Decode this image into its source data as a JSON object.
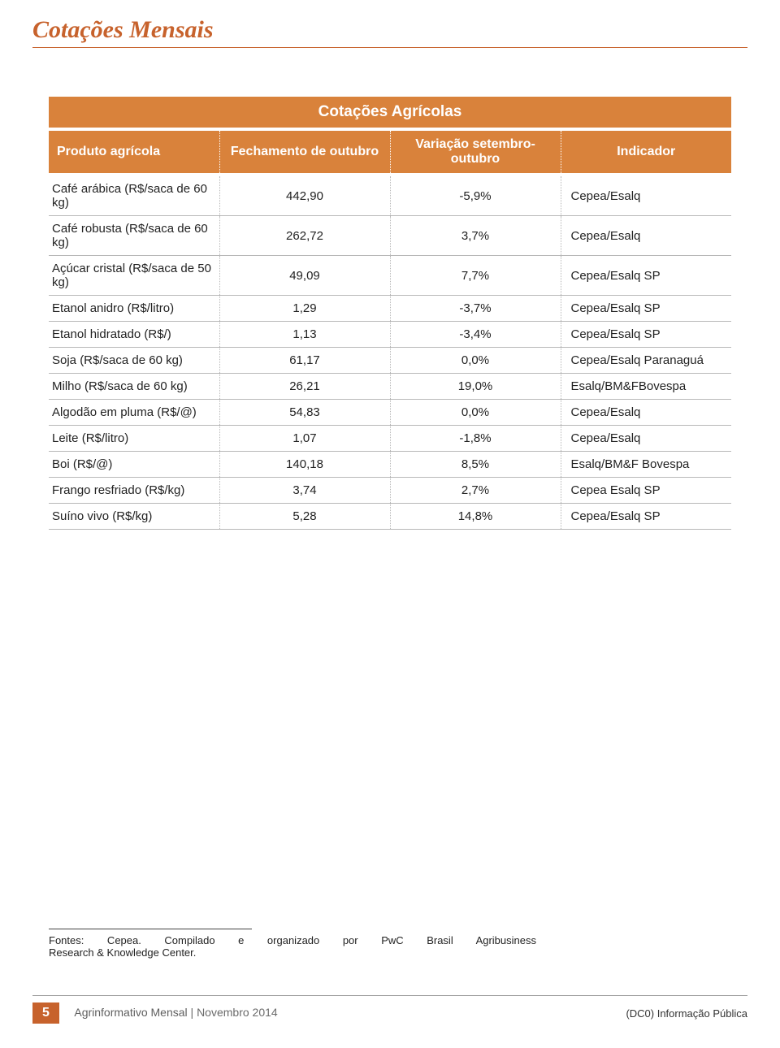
{
  "colors": {
    "accent": "#c7622c",
    "header_bg": "#d9823b",
    "title_rule": "#c7622c",
    "body_text": "#222222",
    "white": "#ffffff",
    "grid": "#b8b8b8",
    "footer_text": "#6b6b6b"
  },
  "page_title": "Cotações Mensais",
  "table": {
    "title": "Cotações Agrícolas",
    "columns": [
      {
        "key": "product",
        "label": "Produto agrícola",
        "width": "32%"
      },
      {
        "key": "close",
        "label": "Fechamento de outubro",
        "width": "18%"
      },
      {
        "key": "variation",
        "label": "Variação setembro-outubro",
        "width": "22%"
      },
      {
        "key": "indicator",
        "label": "Indicador",
        "width": "28%"
      }
    ],
    "rows": [
      {
        "product": "Café arábica (R$/saca de 60 kg)",
        "close": "442,90",
        "variation": "-5,9%",
        "indicator": "Cepea/Esalq"
      },
      {
        "product": "Café robusta (R$/saca de 60 kg)",
        "close": "262,72",
        "variation": "3,7%",
        "indicator": "Cepea/Esalq"
      },
      {
        "product": "Açúcar cristal (R$/saca de 50 kg)",
        "close": "49,09",
        "variation": "7,7%",
        "indicator": "Cepea/Esalq SP"
      },
      {
        "product": "Etanol anidro (R$/litro)",
        "close": "1,29",
        "variation": "-3,7%",
        "indicator": "Cepea/Esalq SP"
      },
      {
        "product": "Etanol hidratado (R$/)",
        "close": "1,13",
        "variation": "-3,4%",
        "indicator": "Cepea/Esalq SP"
      },
      {
        "product": "Soja (R$/saca de 60 kg)",
        "close": "61,17",
        "variation": "0,0%",
        "indicator": "Cepea/Esalq Paranaguá"
      },
      {
        "product": "Milho (R$/saca de 60 kg)",
        "close": "26,21",
        "variation": "19,0%",
        "indicator": "Esalq/BM&FBovespa"
      },
      {
        "product": "Algodão em pluma (R$/@)",
        "close": "54,83",
        "variation": "0,0%",
        "indicator": "Cepea/Esalq"
      },
      {
        "product": "Leite (R$/litro)",
        "close": "1,07",
        "variation": "-1,8%",
        "indicator": "Cepea/Esalq"
      },
      {
        "product": "Boi  (R$/@)",
        "close": "140,18",
        "variation": "8,5%",
        "indicator": "Esalq/BM&F Bovespa"
      },
      {
        "product": "Frango resfriado (R$/kg)",
        "close": "3,74",
        "variation": "2,7%",
        "indicator": "Cepea Esalq SP"
      },
      {
        "product": "Suíno vivo (R$/kg)",
        "close": "5,28",
        "variation": "14,8%",
        "indicator": "Cepea/Esalq SP"
      }
    ]
  },
  "footnote": {
    "line1": "Fontes: Cepea. Compilado e organizado por PwC Brasil Agribusiness",
    "line2": "Research & Knowledge Center."
  },
  "footer": {
    "page_number": "5",
    "publication": "Agrinformativo Mensal",
    "issue": "Novembro 2014",
    "classification": "(DC0) Informação Pública"
  }
}
